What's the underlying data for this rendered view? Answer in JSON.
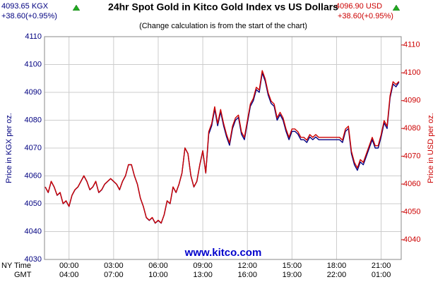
{
  "header": {
    "left_price": "4093.65 KGX",
    "left_change": "+38.60(+0.95%)",
    "right_price": "4096.90 USD",
    "right_change": "+38.60(+0.95%)",
    "watermark": "www.kitco.com"
  },
  "chart_data": {
    "type": "line",
    "title": "24hr Spot Gold in Kitco Gold Index vs US Dollars",
    "subtitle": "(Change calculation is from the start of the chart)",
    "ylabel": "Price in KGX per oz.",
    "y2label": "Price in USD per oz.",
    "x_row_labels": [
      "NY Time",
      "GMT"
    ],
    "xlim": [
      -1.65,
      22.35
    ],
    "xticks": [
      {
        "value": 0,
        "label": "00:00"
      },
      {
        "value": 3,
        "label": "03:00"
      },
      {
        "value": 6,
        "label": "06:00"
      },
      {
        "value": 9,
        "label": "09:00"
      },
      {
        "value": 12,
        "label": "12:00"
      },
      {
        "value": 15,
        "label": "15:00"
      },
      {
        "value": 18,
        "label": "18:00"
      },
      {
        "value": 21,
        "label": "21:00"
      }
    ],
    "gmt_labels": [
      "04:00",
      "07:00",
      "10:00",
      "13:00",
      "16:00",
      "19:00",
      "22:00",
      "01:00"
    ],
    "ylim": [
      4030,
      4110
    ],
    "yticks": [
      4030,
      4040,
      4050,
      4060,
      4070,
      4080,
      4090,
      4100,
      4110
    ],
    "y2lim": [
      4032.9,
      4113
    ],
    "y2ticks": [
      4040,
      4050,
      4060,
      4070,
      4080,
      4090,
      4100,
      4110
    ],
    "grid": true,
    "x": [
      -1.6,
      -1.4,
      -1.2,
      -1,
      -0.8,
      -0.6,
      -0.4,
      -0.2,
      0,
      0.2,
      0.4,
      0.6,
      0.8,
      1,
      1.2,
      1.4,
      1.6,
      1.8,
      2,
      2.2,
      2.4,
      2.6,
      2.8,
      3,
      3.2,
      3.4,
      3.6,
      3.8,
      4,
      4.2,
      4.4,
      4.6,
      4.8,
      5,
      5.2,
      5.4,
      5.6,
      5.8,
      6,
      6.2,
      6.4,
      6.6,
      6.8,
      7,
      7.2,
      7.4,
      7.6,
      7.8,
      8,
      8.2,
      8.4,
      8.6,
      8.8,
      9,
      9.2,
      9.4,
      9.6,
      9.8,
      10,
      10.2,
      10.4,
      10.6,
      10.8,
      11,
      11.2,
      11.4,
      11.6,
      11.8,
      12,
      12.2,
      12.4,
      12.6,
      12.8,
      13,
      13.2,
      13.4,
      13.6,
      13.8,
      14,
      14.2,
      14.4,
      14.6,
      14.8,
      15,
      15.2,
      15.4,
      15.6,
      15.8,
      16,
      16.2,
      16.4,
      16.6,
      16.8,
      17,
      17.2,
      17.4,
      17.6,
      17.8,
      18,
      18.2,
      18.4,
      18.6,
      18.8,
      19,
      19.2,
      19.4,
      19.6,
      19.8,
      20,
      20.2,
      20.4,
      20.6,
      20.8,
      21,
      21.2,
      21.4,
      21.6,
      21.8,
      22,
      22.2
    ],
    "series": [
      {
        "name": "KGX",
        "color": "#000080",
        "axis": "y",
        "values": [
          4056,
          4054,
          4058,
          4056,
          4053,
          4054,
          4050,
          4051,
          4049,
          4053,
          4055,
          4056,
          4058,
          4060,
          4058,
          4055,
          4056,
          4058,
          4054,
          4055,
          4057,
          4058,
          4059,
          4058,
          4057,
          4055,
          4058,
          4060,
          4064,
          4064,
          4060,
          4057,
          4052,
          4049,
          4045,
          4044,
          4045,
          4043,
          4044,
          4043,
          4046,
          4051,
          4050,
          4056,
          4054,
          4057,
          4061,
          4070,
          4068,
          4060,
          4056,
          4058,
          4064,
          4069,
          4061,
          4075,
          4078,
          4084,
          4078,
          4083,
          4078,
          4074,
          4071,
          4077,
          4080,
          4081,
          4075,
          4073,
          4079,
          4085,
          4087,
          4091,
          4090,
          4097,
          4094,
          4089,
          4086,
          4085,
          4080,
          4082,
          4080,
          4076,
          4073,
          4076,
          4076,
          4075,
          4073,
          4073,
          4072,
          4074,
          4073,
          4074,
          4073,
          4073,
          4073,
          4073,
          4073,
          4073,
          4073,
          4073,
          4072,
          4076,
          4077,
          4068,
          4064,
          4062,
          4065,
          4064,
          4067,
          4070,
          4073,
          4070,
          4070,
          4074,
          4079,
          4077,
          4088,
          4093,
          4092,
          4093.65
        ]
      },
      {
        "name": "USD",
        "color": "#cc0000",
        "axis": "y2",
        "values": [
          4059,
          4057,
          4061,
          4059,
          4056,
          4057,
          4053,
          4054,
          4052,
          4056,
          4058,
          4059,
          4061,
          4063,
          4061,
          4058,
          4059,
          4061,
          4057,
          4058,
          4060,
          4061,
          4062,
          4061,
          4060,
          4058,
          4061,
          4063,
          4067,
          4067,
          4063,
          4060,
          4055,
          4052,
          4048,
          4047,
          4048,
          4046,
          4047,
          4046,
          4049,
          4054,
          4053,
          4059,
          4057,
          4060,
          4064,
          4073,
          4071,
          4063,
          4059,
          4061,
          4067,
          4072,
          4064,
          4078.8,
          4081.8,
          4087.8,
          4081.8,
          4086.8,
          4081.8,
          4077.8,
          4074.8,
          4080.8,
          4083.8,
          4084.8,
          4078.8,
          4076.8,
          4082.8,
          4088.8,
          4090.8,
          4094.8,
          4093.8,
          4100.8,
          4097.8,
          4092.8,
          4089.8,
          4088.8,
          4083.8,
          4085.8,
          4083.8,
          4079.8,
          4076.8,
          4079.8,
          4079.8,
          4078.8,
          4076.8,
          4076.8,
          4075.8,
          4077.8,
          4076.8,
          4077.8,
          4076.8,
          4076.8,
          4076.8,
          4076.8,
          4076.8,
          4076.8,
          4076.8,
          4076.8,
          4075.8,
          4079.8,
          4080.8,
          4071.8,
          4067.8,
          4065.8,
          4068.8,
          4067.8,
          4070.8,
          4073.8,
          4076.8,
          4073.8,
          4073.8,
          4077.8,
          4082.8,
          4080.8,
          4091.8,
          4096.8,
          4095.8,
          4096.9
        ]
      }
    ]
  }
}
